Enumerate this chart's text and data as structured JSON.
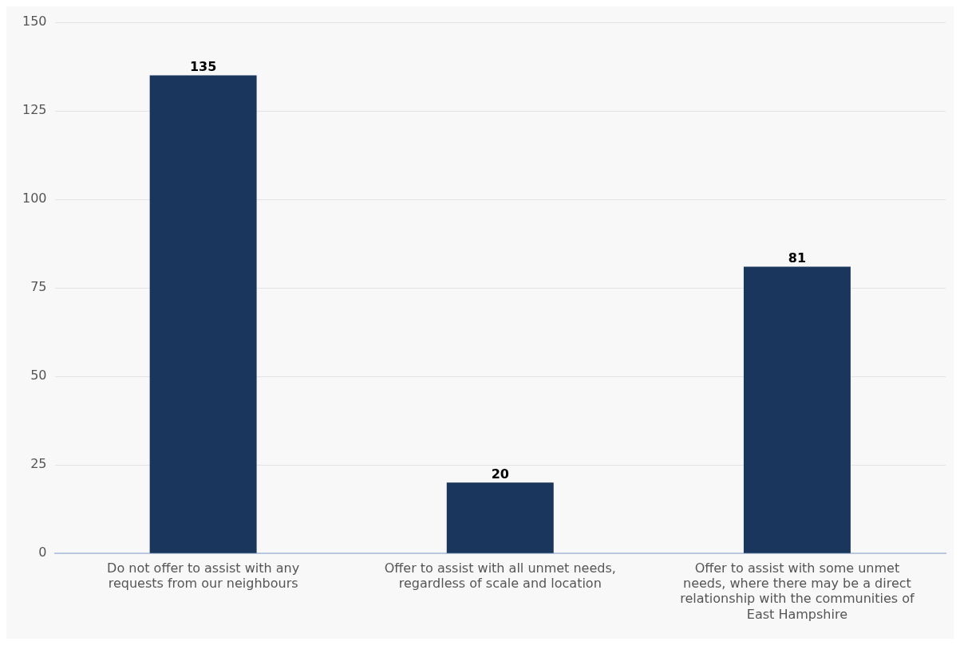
{
  "chart_data": {
    "type": "bar",
    "categories": [
      "Do not offer to assist with any requests from our neighbours",
      "Offer to assist with all unmet needs, regardless of scale and location",
      "Offer to assist with some unmet needs, where there may be a direct relationship with the communities of East Hampshire"
    ],
    "values": [
      135,
      20,
      81
    ],
    "color": "#1b365d",
    "ylim": [
      0,
      150
    ],
    "yticks": [
      0,
      25,
      50,
      75,
      100,
      125,
      150
    ],
    "grid": "y",
    "legend": false,
    "data_labels": true
  }
}
